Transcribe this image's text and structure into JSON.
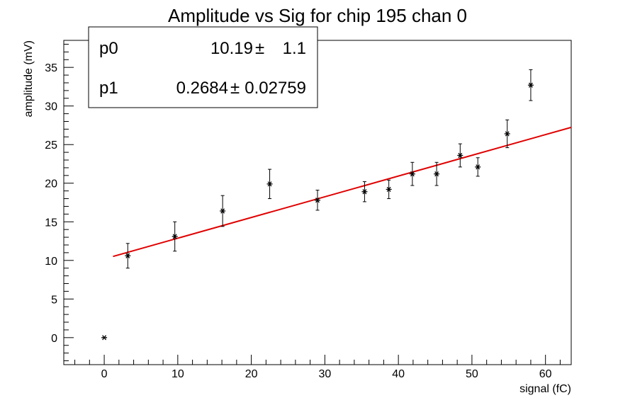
{
  "chart_data": {
    "type": "scatter",
    "title": "Amplitude vs Sig for chip 195 chan 0",
    "xlabel": "signal (fC)",
    "ylabel": "amplitude (mV)",
    "xlim": [
      -5.5,
      63.5
    ],
    "ylim": [
      -3.5,
      38.5
    ],
    "x_ticks": [
      0,
      10,
      20,
      30,
      40,
      50,
      60
    ],
    "y_ticks": [
      0,
      5,
      10,
      15,
      20,
      25,
      30,
      35
    ],
    "grid": false,
    "series": [
      {
        "type": "scatter",
        "marker": "asterisk",
        "color": "#000000",
        "points": [
          {
            "x": 0.0,
            "y": 0.0,
            "err": 0.0
          },
          {
            "x": 3.2,
            "y": 10.6,
            "err": 1.6
          },
          {
            "x": 9.6,
            "y": 13.1,
            "err": 1.9
          },
          {
            "x": 16.1,
            "y": 16.4,
            "err": 2.0
          },
          {
            "x": 22.5,
            "y": 19.9,
            "err": 1.9
          },
          {
            "x": 29.0,
            "y": 17.8,
            "err": 1.3
          },
          {
            "x": 35.4,
            "y": 18.9,
            "err": 1.3
          },
          {
            "x": 38.7,
            "y": 19.2,
            "err": 1.2
          },
          {
            "x": 41.9,
            "y": 21.2,
            "err": 1.5
          },
          {
            "x": 45.2,
            "y": 21.2,
            "err": 1.5
          },
          {
            "x": 48.4,
            "y": 23.6,
            "err": 1.5
          },
          {
            "x": 50.8,
            "y": 22.1,
            "err": 1.2
          },
          {
            "x": 54.8,
            "y": 26.4,
            "err": 1.8
          },
          {
            "x": 58.0,
            "y": 32.7,
            "err": 2.0
          }
        ]
      },
      {
        "type": "line",
        "color": "#e00000",
        "x_start": 1.2,
        "x_end": 63.5,
        "p0": 10.19,
        "p1": 0.2684
      }
    ],
    "stats_box": {
      "position": "top-left",
      "rows": [
        {
          "label": "p0",
          "value": "10.19",
          "pm": "±",
          "error": "1.1"
        },
        {
          "label": "p1",
          "value": "0.2684",
          "pm": "±",
          "error": "0.02759"
        }
      ]
    }
  }
}
